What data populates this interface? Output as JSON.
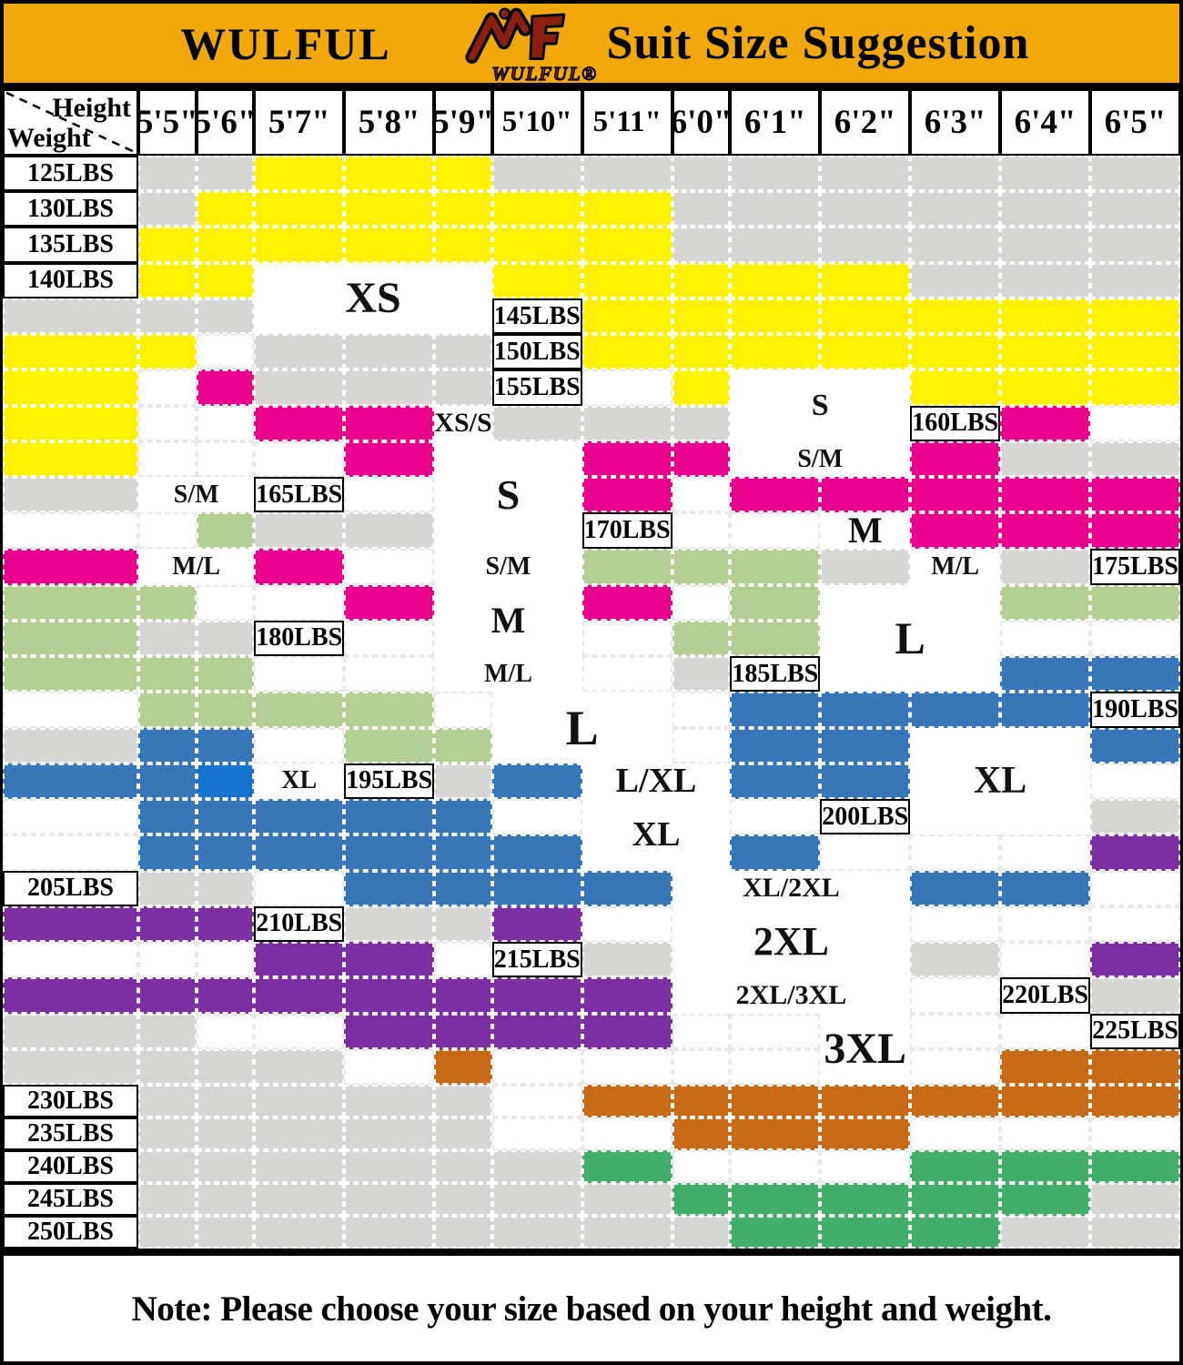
{
  "banner": {
    "brand": "WULFUL",
    "title": "Suit Size Suggestion",
    "logo_text": "WULFUL®",
    "bg_color": "#F2A70B"
  },
  "table": {
    "corner": {
      "top_label": "Height",
      "bottom_label": "Weight"
    }
  },
  "note": {
    "text": "Note: Please choose your size based on your height and weight."
  },
  "chart_data": {
    "type": "heatmap",
    "title": "Suit Size Suggestion",
    "x_label": "Height",
    "y_label": "Weight",
    "x": [
      "5'5\"",
      "5'6\"",
      "5'7\"",
      "5'8\"",
      "5'9\"",
      "5'10\"",
      "5'11\"",
      "6'0\"",
      "6'1\"",
      "6'2\"",
      "6'3\"",
      "6'4\"",
      "6'5\""
    ],
    "y": [
      "125LBS",
      "130LBS",
      "135LBS",
      "140LBS",
      "145LBS",
      "150LBS",
      "155LBS",
      "160LBS",
      "165LBS",
      "170LBS",
      "175LBS",
      "180LBS",
      "185LBS",
      "190LBS",
      "195LBS",
      "200LBS",
      "205LBS",
      "210LBS",
      "215LBS",
      "220LBS",
      "225LBS",
      "230LBS",
      "235LBS",
      "240LBS",
      "245LBS",
      "250LBS"
    ],
    "palette": {
      "G": "#d6d6d4",
      "W": "#ffffff",
      "Y": "#fff100",
      "P": "#e9008c",
      "N": "#b3cf96",
      "B": "#3876ba",
      "C": "#1774ce",
      "U": "#7b2fa2",
      "O": "#c96a17",
      "E": "#41ae6b"
    },
    "code_meaning": {
      "G": "not-available",
      "W": "between-sizes",
      "Y": "XS",
      "P": "S",
      "N": "M",
      "B": "L",
      "C": "L",
      "U": "XL",
      "O": "2XL",
      "E": "3XL"
    },
    "legend": {
      "XS": "#fff100",
      "S": "#e9008c",
      "M": "#b3cf96",
      "L": "#3876ba",
      "XL": "#7b2fa2",
      "2XL": "#c96a17",
      "3XL": "#41ae6b",
      "transition_zone": "#ffffff",
      "not_available": "#d6d6d4"
    },
    "cells": [
      "GGYYYGGGGGGGG",
      "GYYYYYYGGGGGG",
      "YYYYYYYGGGGGG",
      "YYYYYYYGGGGGG",
      "YYYYYYYYYWGGG",
      "YYYYYYYYWPGGG",
      "WYYYYYWWPPGGG",
      "PWYWWWPPPPGGG",
      "WPWPPPPPWWNGG",
      "WWPPPPPWNNNGG",
      "NNWWPPWNNNNGG",
      "WWNNWWNNNWWWG",
      "BBWNNNNWWBBBB",
      "GBBWNNWBBBBBC",
      "GBBBWWBBBBBWW",
      "GWBBBBBBBWWWU",
      "GGWBBBBBBWUUU",
      "GGUWWWWWWWUUW",
      "GGWUUUUUUUUUW",
      "GGGWWUUUUWWWW",
      "GGGGWOWWWWWOO",
      "GGGGGWOOOOOOO",
      "GGGGGWWOOOWWW",
      "GGGGGGEWWWEEE",
      "GGGGGGGEEEEEG",
      "GGGGGGGGEEEGG"
    ],
    "labels": [
      {
        "text": "XS",
        "r": 3,
        "c": 2,
        "rs": 2,
        "cs": 3,
        "fs": 48
      },
      {
        "text": "XS/S",
        "r": 7,
        "c": 4,
        "rs": 1,
        "cs": 1,
        "fs": 30
      },
      {
        "text": "S",
        "r": 8,
        "c": 4,
        "rs": 3,
        "cs": 2,
        "fs": 46
      },
      {
        "text": "S",
        "r": 6,
        "c": 8,
        "rs": 2,
        "cs": 2,
        "fs": 34
      },
      {
        "text": "S/M",
        "r": 9,
        "c": 0,
        "rs": 1,
        "cs": 2,
        "fs": 28
      },
      {
        "text": "S/M",
        "r": 8,
        "c": 8,
        "rs": 1,
        "cs": 2,
        "fs": 28
      },
      {
        "text": "S/M",
        "r": 11,
        "c": 4,
        "rs": 1,
        "cs": 2,
        "fs": 28
      },
      {
        "text": "M/L",
        "r": 11,
        "c": 0,
        "rs": 1,
        "cs": 2,
        "fs": 28
      },
      {
        "text": "M/L",
        "r": 11,
        "c": 10,
        "rs": 1,
        "cs": 1,
        "fs": 28
      },
      {
        "text": "M",
        "r": 12,
        "c": 4,
        "rs": 2,
        "cs": 2,
        "fs": 40
      },
      {
        "text": "M",
        "r": 10,
        "c": 9,
        "rs": 1,
        "cs": 1,
        "fs": 40
      },
      {
        "text": "M/L",
        "r": 14,
        "c": 4,
        "rs": 1,
        "cs": 2,
        "fs": 28
      },
      {
        "text": "L",
        "r": 15,
        "c": 5,
        "rs": 2,
        "cs": 2,
        "fs": 54
      },
      {
        "text": "L",
        "r": 12,
        "c": 9,
        "rs": 3,
        "cs": 2,
        "fs": 50
      },
      {
        "text": "XL",
        "r": 17,
        "c": 2,
        "rs": 1,
        "cs": 1,
        "fs": 28
      },
      {
        "text": "L/XL",
        "r": 17,
        "c": 6,
        "rs": 1,
        "cs": 2,
        "fs": 38
      },
      {
        "text": "XL",
        "r": 16,
        "c": 10,
        "rs": 3,
        "cs": 2,
        "fs": 42
      },
      {
        "text": "XL",
        "r": 18,
        "c": 6,
        "rs": 2,
        "cs": 2,
        "fs": 38
      },
      {
        "text": "XL/2XL",
        "r": 20,
        "c": 7,
        "rs": 1,
        "cs": 3,
        "fs": 30
      },
      {
        "text": "2XL",
        "r": 21,
        "c": 7,
        "rs": 2,
        "cs": 3,
        "fs": 44
      },
      {
        "text": "2XL/3XL",
        "r": 23,
        "c": 7,
        "rs": 1,
        "cs": 3,
        "fs": 30
      },
      {
        "text": "3XL",
        "r": 24,
        "c": 9,
        "rs": 2,
        "cs": 1,
        "fs": 48
      }
    ]
  }
}
